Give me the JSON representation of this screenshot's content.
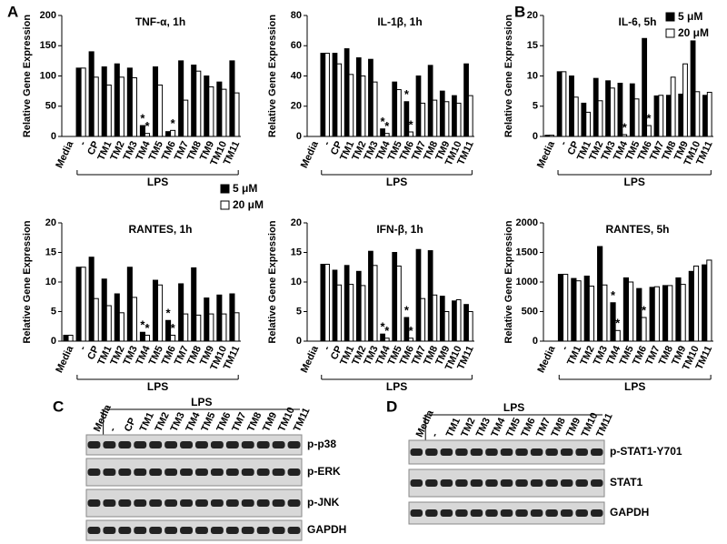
{
  "panel_labels": [
    "A",
    "B",
    "C",
    "D"
  ],
  "chart_data": [
    {
      "type": "bar",
      "title": "TNF-α, 1h",
      "ylabel": "Relative Gene Expression",
      "categories": [
        "Media",
        "-",
        "CP",
        "TM1",
        "TM2",
        "TM3",
        "TM4",
        "TM5",
        "TM6",
        "TM7",
        "TM8",
        "TM9",
        "TM10",
        "TM11"
      ],
      "series": [
        {
          "name": "5 μM",
          "color": "#000000",
          "values": [
            0,
            113,
            140,
            115,
            120,
            113,
            18,
            115,
            8,
            125,
            118,
            100,
            90,
            125
          ]
        },
        {
          "name": "20 μM",
          "color": "#ffffff",
          "values": [
            0,
            113,
            98,
            85,
            98,
            97,
            5,
            85,
            10,
            60,
            108,
            82,
            78,
            72
          ]
        }
      ],
      "ylim": [
        0,
        200
      ],
      "yticks": [
        0,
        50,
        100,
        150,
        200
      ],
      "legend": false,
      "bracket": {
        "label": "LPS",
        "from": "-",
        "to": "TM11"
      },
      "annotations": [
        {
          "text": "*",
          "category": "TM4",
          "series": "5 μM"
        },
        {
          "text": "*",
          "category": "TM4",
          "series": "20 μM"
        },
        {
          "text": "*",
          "category": "TM6",
          "series": "20 μM"
        }
      ]
    },
    {
      "type": "bar",
      "title": "IL-1β, 1h",
      "ylabel": "Relative Gene Expression",
      "categories": [
        "Media",
        "-",
        "CP",
        "TM1",
        "TM2",
        "TM3",
        "TM4",
        "TM5",
        "TM6",
        "TM7",
        "TM8",
        "TM9",
        "TM10",
        "TM11"
      ],
      "series": [
        {
          "name": "5 μM",
          "color": "#000000",
          "values": [
            0,
            55,
            55,
            58,
            52,
            51,
            5,
            36,
            23,
            40,
            47,
            30,
            27,
            48
          ]
        },
        {
          "name": "20 μM",
          "color": "#ffffff",
          "values": [
            0,
            55,
            48,
            41,
            40,
            36,
            2,
            31,
            3,
            22,
            24,
            23,
            22,
            27
          ]
        }
      ],
      "ylim": [
        0,
        80
      ],
      "yticks": [
        0,
        20,
        40,
        60,
        80
      ],
      "legend": "below-left",
      "bracket": {
        "label": "LPS",
        "from": "-",
        "to": "TM11"
      },
      "annotations": [
        {
          "text": "*",
          "category": "TM4",
          "series": "5 μM"
        },
        {
          "text": "*",
          "category": "TM4",
          "series": "20 μM"
        },
        {
          "text": "*",
          "category": "TM6",
          "series": "5 μM"
        },
        {
          "text": "*",
          "category": "TM6",
          "series": "20 μM"
        }
      ]
    },
    {
      "type": "bar",
      "title": "IL-6, 5h",
      "ylabel": "Relative Gene Expression",
      "categories": [
        "Media",
        "-",
        "CP",
        "TM1",
        "TM2",
        "TM3",
        "TM4",
        "TM5",
        "TM6",
        "TM7",
        "TM8",
        "TM9",
        "TM10",
        "TM11"
      ],
      "series": [
        {
          "name": "5 μM",
          "color": "#000000",
          "values": [
            0.2,
            10.7,
            10,
            5.5,
            9.6,
            9.2,
            8.8,
            8.7,
            16.2,
            6.7,
            6.8,
            7,
            15.8,
            6.8
          ]
        },
        {
          "name": "20 μM",
          "color": "#ffffff",
          "values": [
            0.2,
            10.7,
            6.5,
            4,
            5.9,
            8,
            0.3,
            6.2,
            1.8,
            6.8,
            9.8,
            12,
            7.4,
            7.3
          ]
        }
      ],
      "ylim": [
        0,
        20
      ],
      "yticks": [
        0,
        5,
        10,
        15,
        20
      ],
      "legend": "top-right",
      "bracket": {
        "label": "LPS",
        "from": "-",
        "to": "TM11"
      },
      "annotations": [
        {
          "text": "*",
          "category": "TM4",
          "series": "20 μM"
        },
        {
          "text": "*",
          "category": "TM6",
          "series": "20 μM"
        }
      ]
    },
    {
      "type": "bar",
      "title": "RANTES, 1h",
      "ylabel": "Relative Gene Expression",
      "categories": [
        "Media",
        "-",
        "CP",
        "TM1",
        "TM2",
        "TM3",
        "TM4",
        "TM5",
        "TM6",
        "TM7",
        "TM8",
        "TM9",
        "TM10",
        "TM11"
      ],
      "series": [
        {
          "name": "5 μM",
          "color": "#000000",
          "values": [
            1,
            12.5,
            14.2,
            10.5,
            8,
            12.5,
            1.5,
            10.3,
            3.5,
            9.7,
            12.4,
            7.3,
            7.8,
            8
          ]
        },
        {
          "name": "20 μM",
          "color": "#ffffff",
          "values": [
            1,
            12.5,
            7.2,
            6,
            4.8,
            7.4,
            1,
            9.5,
            1,
            4.6,
            4.4,
            4.6,
            4.6,
            4.8
          ]
        }
      ],
      "ylim": [
        0,
        20
      ],
      "yticks": [
        0,
        5,
        10,
        15,
        20
      ],
      "legend": false,
      "bracket": {
        "label": "LPS",
        "from": "-",
        "to": "TM11"
      },
      "annotations": [
        {
          "text": "*",
          "category": "TM4",
          "series": "5 μM"
        },
        {
          "text": "*",
          "category": "TM4",
          "series": "20 μM"
        },
        {
          "text": "*",
          "category": "TM6",
          "series": "5 μM"
        },
        {
          "text": "*",
          "category": "TM6",
          "series": "20 μM"
        }
      ]
    },
    {
      "type": "bar",
      "title": "IFN-β, 1h",
      "ylabel": "Relative Gene Expression",
      "categories": [
        "Media",
        "-",
        "CP",
        "TM1",
        "TM2",
        "TM3",
        "TM4",
        "TM5",
        "TM6",
        "TM7",
        "TM8",
        "TM9",
        "TM10",
        "TM11"
      ],
      "series": [
        {
          "name": "5 μM",
          "color": "#000000",
          "values": [
            0,
            13,
            12,
            12.8,
            11.8,
            15.2,
            1.2,
            15,
            4,
            15.5,
            15.3,
            7.6,
            6.8,
            6.2
          ]
        },
        {
          "name": "20 μM",
          "color": "#ffffff",
          "values": [
            0,
            13,
            9.5,
            9.6,
            9.4,
            12.8,
            0.5,
            12.7,
            0.5,
            7.2,
            7.8,
            5,
            7,
            5
          ]
        }
      ],
      "ylim": [
        0,
        20
      ],
      "yticks": [
        0,
        5,
        10,
        15,
        20
      ],
      "legend": false,
      "bracket": {
        "label": "LPS",
        "from": "-",
        "to": "TM11"
      },
      "annotations": [
        {
          "text": "*",
          "category": "TM4",
          "series": "5 μM"
        },
        {
          "text": "*",
          "category": "TM4",
          "series": "20 μM"
        },
        {
          "text": "*",
          "category": "TM6",
          "series": "5 μM"
        },
        {
          "text": "*",
          "category": "TM6",
          "series": "20 μM"
        }
      ]
    },
    {
      "type": "bar",
      "title": "RANTES, 5h",
      "ylabel": "Relative Gene Expression",
      "categories": [
        "Media",
        "-",
        "TM1",
        "TM2",
        "TM3",
        "TM4",
        "TM5",
        "TM6",
        "TM7",
        "TM8",
        "TM9",
        "TM10",
        "TM11"
      ],
      "series": [
        {
          "name": "5 μM",
          "color": "#000000",
          "values": [
            0,
            1130,
            1060,
            1100,
            1600,
            650,
            1070,
            890,
            910,
            940,
            1070,
            1180,
            1290
          ]
        },
        {
          "name": "20 μM",
          "color": "#ffffff",
          "values": [
            0,
            1130,
            1020,
            930,
            950,
            180,
            1000,
            400,
            920,
            940,
            960,
            1270,
            1370
          ]
        }
      ],
      "ylim": [
        0,
        2000
      ],
      "yticks": [
        0,
        500,
        1000,
        1500,
        2000
      ],
      "legend": false,
      "bracket": {
        "label": "LPS",
        "from": "-",
        "to": "TM11"
      },
      "annotations": [
        {
          "text": "*",
          "category": "TM4",
          "series": "5 μM"
        },
        {
          "text": "*",
          "category": "TM4",
          "series": "20 μM"
        },
        {
          "text": "*",
          "category": "TM6",
          "series": "20 μM"
        }
      ]
    }
  ],
  "blots": [
    {
      "group_label": "LPS",
      "lanes": [
        "Media",
        "-",
        "CP",
        "TM1",
        "TM2",
        "TM3",
        "TM4",
        "TM5",
        "TM6",
        "TM7",
        "TM8",
        "TM9",
        "TM10",
        "TM11"
      ],
      "rows": [
        "p-p38",
        "p-ERK",
        "p-JNK",
        "GAPDH"
      ]
    },
    {
      "group_label": "LPS",
      "lanes": [
        "Media",
        "-",
        "TM1",
        "TM2",
        "TM3",
        "TM4",
        "TM5",
        "TM6",
        "TM7",
        "TM8",
        "TM9",
        "TM10",
        "TM11"
      ],
      "rows": [
        "p-STAT1-Y701",
        "STAT1",
        "GAPDH"
      ]
    }
  ]
}
